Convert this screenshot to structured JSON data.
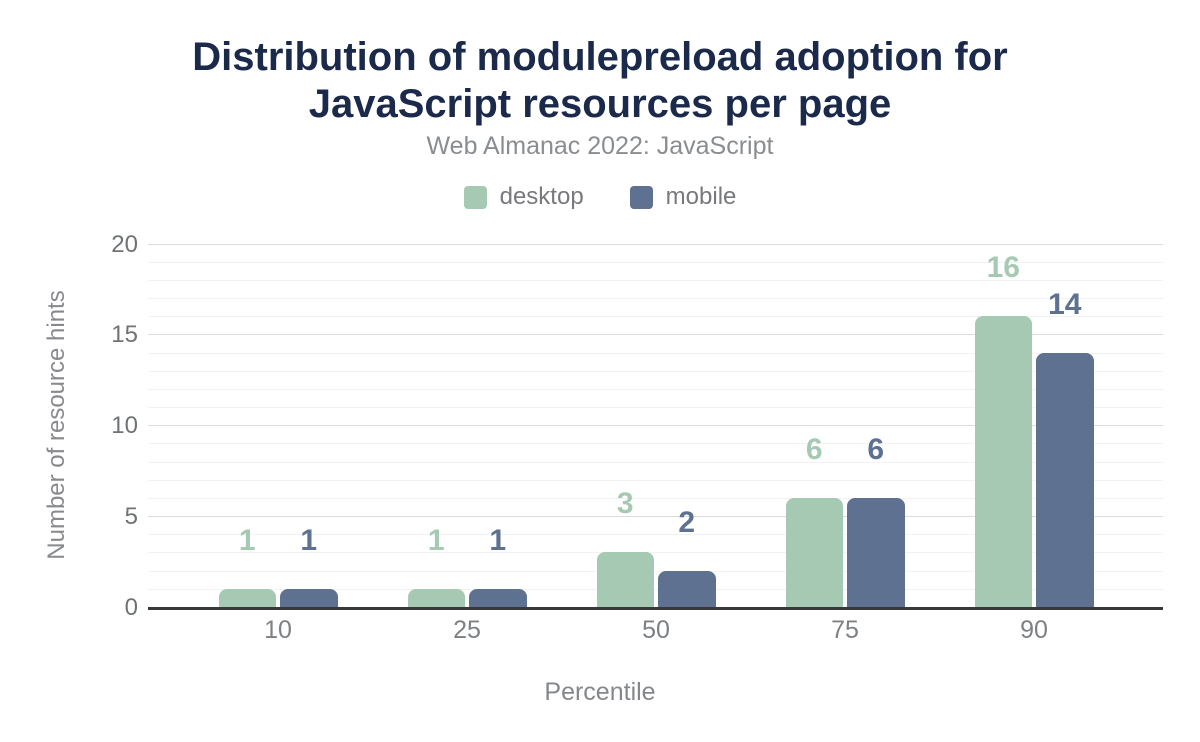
{
  "chart_data": {
    "type": "bar",
    "title": "Distribution of modulepreload adoption for JavaScript resources per page",
    "subtitle": "Web Almanac 2022: JavaScript",
    "categories": [
      "10",
      "25",
      "50",
      "75",
      "90"
    ],
    "series": [
      {
        "name": "desktop",
        "color": "#a6c9b4",
        "values": [
          1,
          1,
          3,
          6,
          16
        ]
      },
      {
        "name": "mobile",
        "color": "#5e7190",
        "values": [
          1,
          1,
          2,
          6,
          14
        ]
      }
    ],
    "xlabel": "Percentile",
    "ylabel": "Number of resource hints",
    "ylim": [
      0,
      20
    ],
    "yticks": [
      0,
      5,
      10,
      15,
      20
    ],
    "grid": {
      "minor_step": 1,
      "major_step": 5
    },
    "legend_position": "top",
    "data_labels": true,
    "colors": {
      "title": "#1b2a4a",
      "subtitle": "#8a8d90",
      "axis_line": "#383838",
      "tick_text": "#6f7376"
    }
  }
}
